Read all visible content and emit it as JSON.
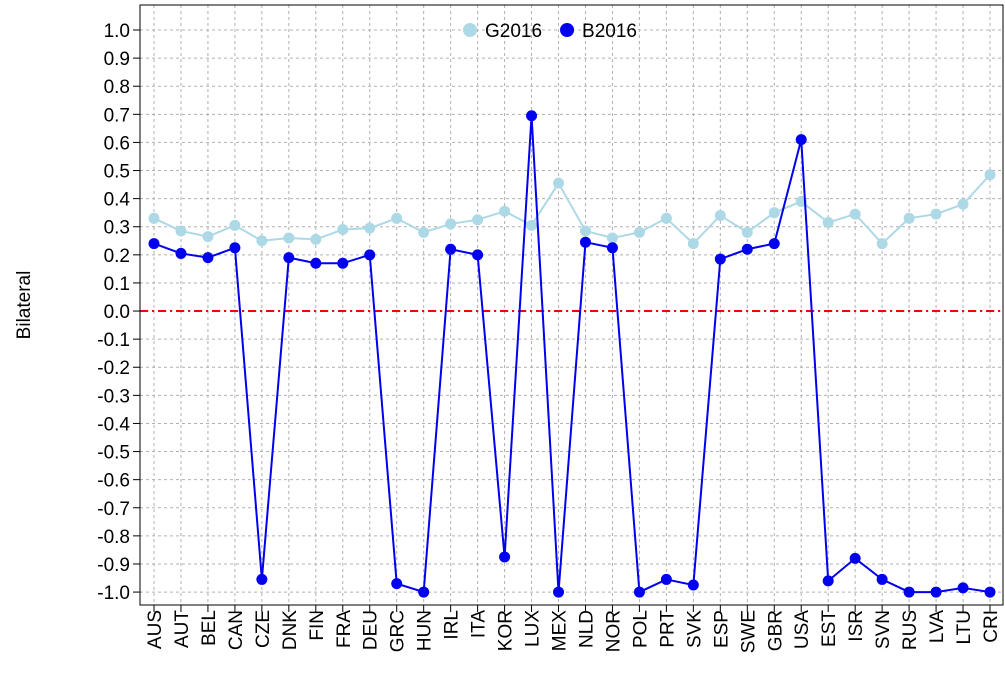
{
  "chart_data": {
    "type": "line",
    "y_label": "Bilateral",
    "categories": [
      "AUS",
      "AUT",
      "BEL",
      "CAN",
      "CZE",
      "DNK",
      "FIN",
      "FRA",
      "DEU",
      "GRC",
      "HUN",
      "IRL",
      "ITA",
      "KOR",
      "LUX",
      "MEX",
      "NLD",
      "NOR",
      "POL",
      "PRT",
      "SVK",
      "ESP",
      "SWE",
      "GBR",
      "USA",
      "EST",
      "ISR",
      "SVN",
      "RUS",
      "LVA",
      "LTU",
      "CRI"
    ],
    "series": [
      {
        "name": "G2016",
        "color": "#add8e6",
        "values": [
          0.33,
          0.285,
          0.265,
          0.305,
          0.25,
          0.26,
          0.255,
          0.29,
          0.295,
          0.33,
          0.28,
          0.31,
          0.325,
          0.355,
          0.305,
          0.455,
          0.285,
          0.26,
          0.28,
          0.33,
          0.24,
          0.34,
          0.28,
          0.35,
          0.39,
          0.315,
          0.345,
          0.24,
          0.33,
          0.345,
          0.38,
          0.485
        ]
      },
      {
        "name": "B2016",
        "color": "#0000ee",
        "values": [
          0.24,
          0.205,
          0.19,
          0.225,
          -0.955,
          0.19,
          0.17,
          0.17,
          0.2,
          -0.97,
          -1.0,
          0.22,
          0.2,
          -0.875,
          0.695,
          -1.0,
          0.245,
          0.225,
          -1.0,
          -0.955,
          -0.975,
          0.185,
          0.22,
          0.24,
          0.61,
          -0.96,
          -0.88,
          -0.955,
          -1.0,
          -1.0,
          -0.985,
          -1.0
        ]
      }
    ],
    "ylim": [
      -1.046,
      1.089
    ],
    "yticks": [
      {
        "value": 1,
        "label": "1.0"
      },
      0.9,
      0.8,
      0.7,
      0.6,
      0.5,
      0.4,
      0.3,
      0.2,
      0.1,
      {
        "value": 0,
        "label": "0.0"
      },
      -0.1,
      -0.2,
      -0.3,
      -0.4,
      -0.5,
      -0.6,
      -0.7,
      -0.8,
      -0.9,
      {
        "value": -1,
        "label": "-1.0"
      }
    ],
    "grid": true,
    "hline": 0,
    "hline_color": "#ff0000",
    "legend": "top"
  }
}
